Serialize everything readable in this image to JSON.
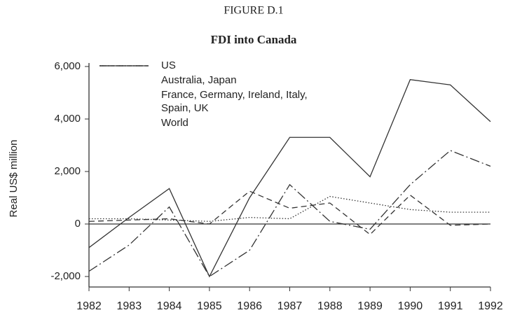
{
  "chart_data": {
    "type": "line",
    "supertitle": "FIGURE D.1",
    "title": "FDI into Canada",
    "ylabel": "Real US$ million",
    "x": [
      1982,
      1983,
      1984,
      1985,
      1986,
      1987,
      1988,
      1989,
      1990,
      1991,
      1992
    ],
    "xlim": [
      1982,
      1992
    ],
    "xticks": [
      1982,
      1983,
      1984,
      1985,
      1986,
      1987,
      1988,
      1989,
      1990,
      1991,
      1992
    ],
    "ylim": [
      -2400,
      6000
    ],
    "yticks": [
      {
        "value": 6000,
        "label": "6,000"
      },
      {
        "value": 4000,
        "label": "4,000"
      },
      {
        "value": 2000,
        "label": "2,000"
      },
      0,
      {
        "value": -2000,
        "label": "-2,000"
      }
    ],
    "series": [
      {
        "name": "US",
        "color": "#333333",
        "values": [
          -1800,
          -800,
          650,
          -2000,
          -1000,
          1500,
          100,
          -200,
          1500,
          2800,
          2200
        ]
      },
      {
        "name": "Australia, Japan",
        "color": "#333333",
        "values": [
          200,
          200,
          150,
          100,
          250,
          200,
          1050,
          800,
          550,
          450,
          450
        ]
      },
      {
        "name": "France, Germany, Ireland, Italy, Spain, UK",
        "color": "#333333",
        "values": [
          100,
          150,
          200,
          0,
          1250,
          600,
          800,
          -400,
          1100,
          -50,
          0
        ]
      },
      {
        "name": "World",
        "color": "#333333",
        "values": [
          -900,
          250,
          1350,
          -2000,
          1000,
          3300,
          3300,
          1800,
          5500,
          5300,
          3900
        ]
      }
    ]
  }
}
